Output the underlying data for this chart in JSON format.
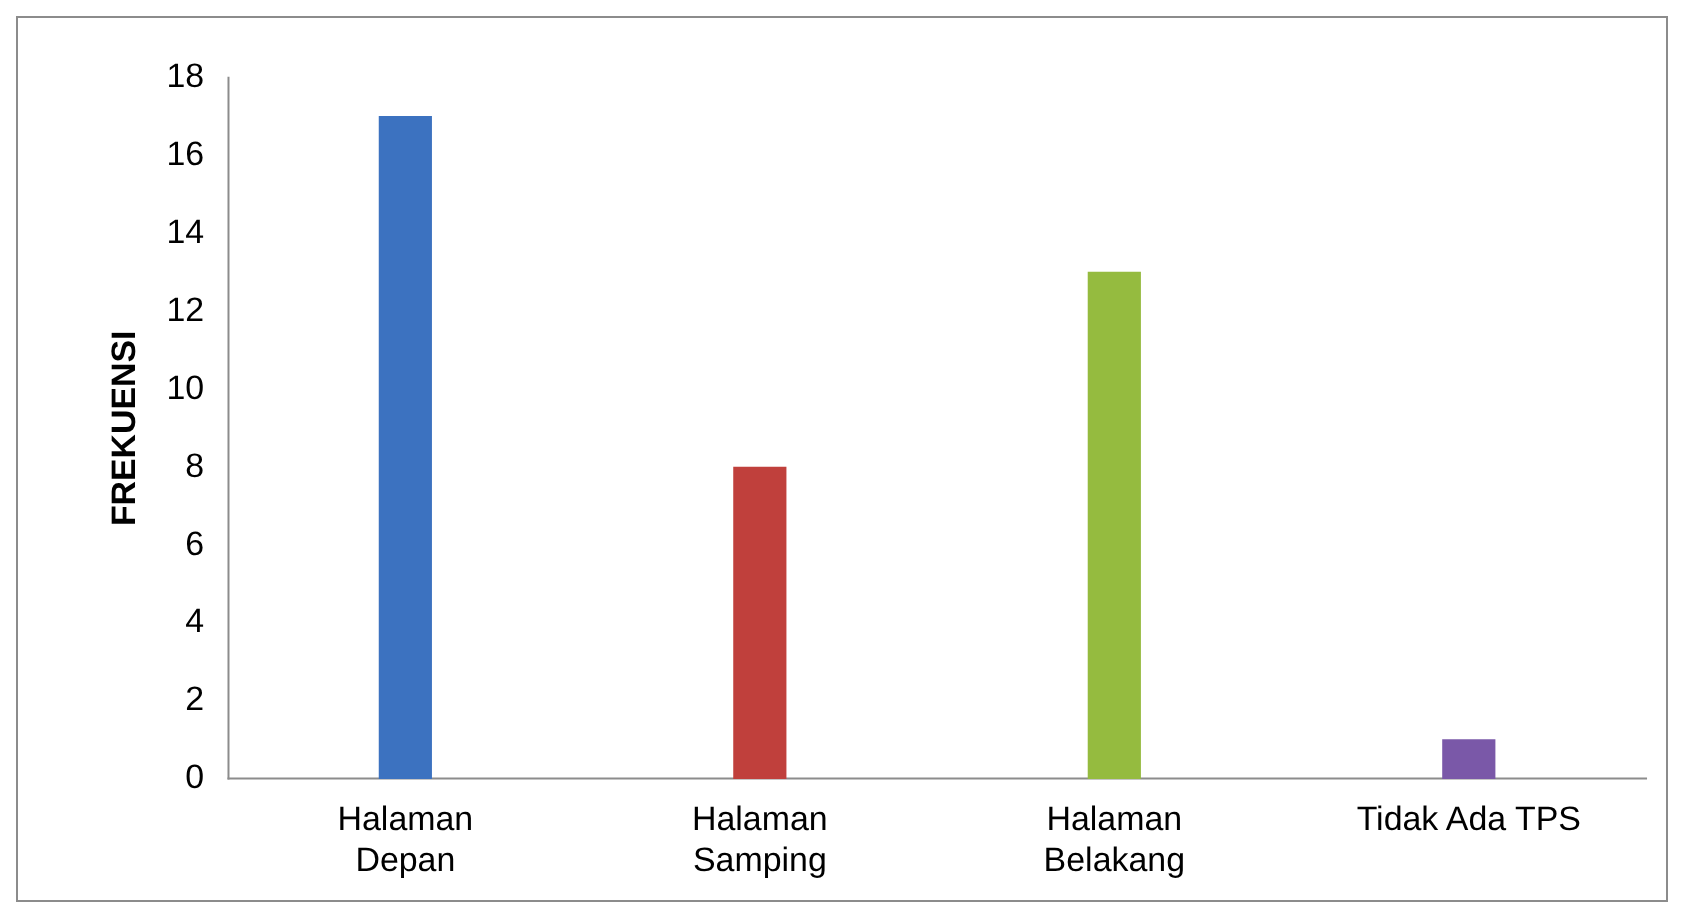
{
  "chart_data": {
    "type": "bar",
    "ylabel": "FREKUENSI",
    "categories": [
      "Halaman Depan",
      "Halaman Samping",
      "Halaman Belakang",
      "Tidak Ada TPS"
    ],
    "values": [
      17,
      8,
      13,
      1
    ],
    "colors": [
      "#3c72c0",
      "#c0403c",
      "#95bb3f",
      "#7a58a8"
    ],
    "ylim": [
      0,
      18
    ],
    "yticks": [
      0,
      2,
      4,
      6,
      8,
      10,
      12,
      14,
      16,
      18
    ],
    "grid": false,
    "legend": false
  }
}
